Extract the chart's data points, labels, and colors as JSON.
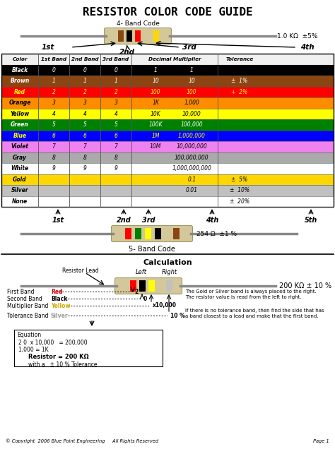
{
  "title": "RESISTOR COLOR CODE GUIDE",
  "bg_color": "#ffffff",
  "table_rows": [
    {
      "color": "Black",
      "bg": "#000000",
      "text_color": "#ffffff",
      "b1": "0",
      "b2": "0",
      "b3": "0",
      "mult": "1",
      "mult2": "1",
      "tol": ""
    },
    {
      "color": "Brown",
      "bg": "#8B4513",
      "text_color": "#ffffff",
      "b1": "1",
      "b2": "1",
      "b3": "1",
      "mult": "10",
      "mult2": "10",
      "tol": "±  1%"
    },
    {
      "color": "Red",
      "bg": "#ff0000",
      "text_color": "#ffff00",
      "b1": "2",
      "b2": "2",
      "b3": "2",
      "mult": "100",
      "mult2": "100",
      "tol": "+  2%"
    },
    {
      "color": "Orange",
      "bg": "#ff8c00",
      "text_color": "#000000",
      "b1": "3",
      "b2": "3",
      "b3": "3",
      "mult": "1K",
      "mult2": "1,000",
      "tol": ""
    },
    {
      "color": "Yellow",
      "bg": "#ffff00",
      "text_color": "#000000",
      "b1": "4",
      "b2": "4",
      "b3": "4",
      "mult": "10K",
      "mult2": "10,000",
      "tol": ""
    },
    {
      "color": "Green",
      "bg": "#008000",
      "text_color": "#ffffff",
      "b1": "5",
      "b2": "5",
      "b3": "5",
      "mult": "100K",
      "mult2": "100,000",
      "tol": ""
    },
    {
      "color": "Blue",
      "bg": "#0000ff",
      "text_color": "#ffff00",
      "b1": "6",
      "b2": "6",
      "b3": "6",
      "mult": "1M",
      "mult2": "1,000,000",
      "tol": ""
    },
    {
      "color": "Violet",
      "bg": "#ee82ee",
      "text_color": "#000000",
      "b1": "7",
      "b2": "7",
      "b3": "7",
      "mult": "10M",
      "mult2": "10,000,000",
      "tol": ""
    },
    {
      "color": "Gray",
      "bg": "#aaaaaa",
      "text_color": "#000000",
      "b1": "8",
      "b2": "8",
      "b3": "8",
      "mult": "",
      "mult2": "100,000,000",
      "tol": ""
    },
    {
      "color": "White",
      "bg": "#ffffff",
      "text_color": "#000000",
      "b1": "9",
      "b2": "9",
      "b3": "9",
      "mult": "",
      "mult2": "1,000,000,000",
      "tol": ""
    },
    {
      "color": "Gold",
      "bg": "#FFD700",
      "text_color": "#000000",
      "b1": "",
      "b2": "",
      "b3": "",
      "mult": "",
      "mult2": "0.1",
      "tol": "±  5%"
    },
    {
      "color": "Silver",
      "bg": "#C0C0C0",
      "text_color": "#000000",
      "b1": "",
      "b2": "",
      "b3": "",
      "mult": "",
      "mult2": "0.01",
      "tol": "±  10%"
    },
    {
      "color": "None",
      "bg": "#ffffff",
      "text_color": "#000000",
      "b1": "",
      "b2": "",
      "b3": "",
      "mult": "",
      "mult2": "",
      "tol": "±  20%"
    }
  ],
  "header": [
    "Color",
    "1st Band",
    "2nd Band",
    "3rd Band",
    "Decimal Multiplier",
    "Tolerance"
  ],
  "footer_text": "© Copyright  2006 Blue Point Engineering     All Rights Reserved",
  "page_text": "Page 1"
}
